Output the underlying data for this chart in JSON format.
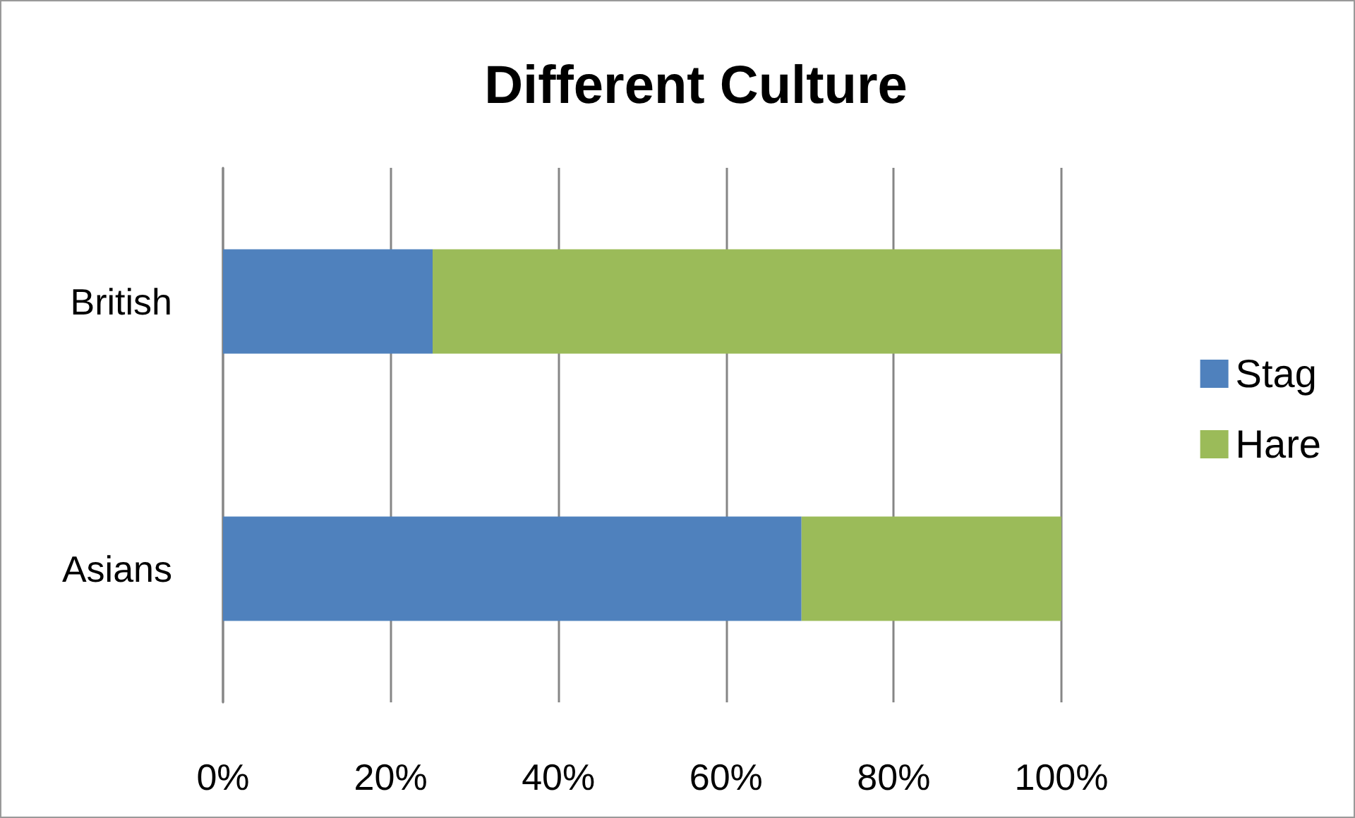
{
  "chart_data": {
    "type": "bar",
    "title": "Different Culture",
    "orientation": "horizontal",
    "stacked": true,
    "categories": [
      "British",
      "Asians"
    ],
    "series": [
      {
        "name": "Stag",
        "color": "#4f81bd",
        "values": [
          25,
          69
        ]
      },
      {
        "name": "Hare",
        "color": "#9bbb59",
        "values": [
          75,
          31
        ]
      }
    ],
    "xlim": [
      0,
      100
    ],
    "xticks": [
      {
        "value": 0,
        "label": "0%"
      },
      {
        "value": 20,
        "label": "20%"
      },
      {
        "value": 40,
        "label": "40%"
      },
      {
        "value": 60,
        "label": "60%"
      },
      {
        "value": 80,
        "label": "80%"
      },
      {
        "value": 100,
        "label": "100%"
      }
    ],
    "grid": "x",
    "legend": "right"
  }
}
